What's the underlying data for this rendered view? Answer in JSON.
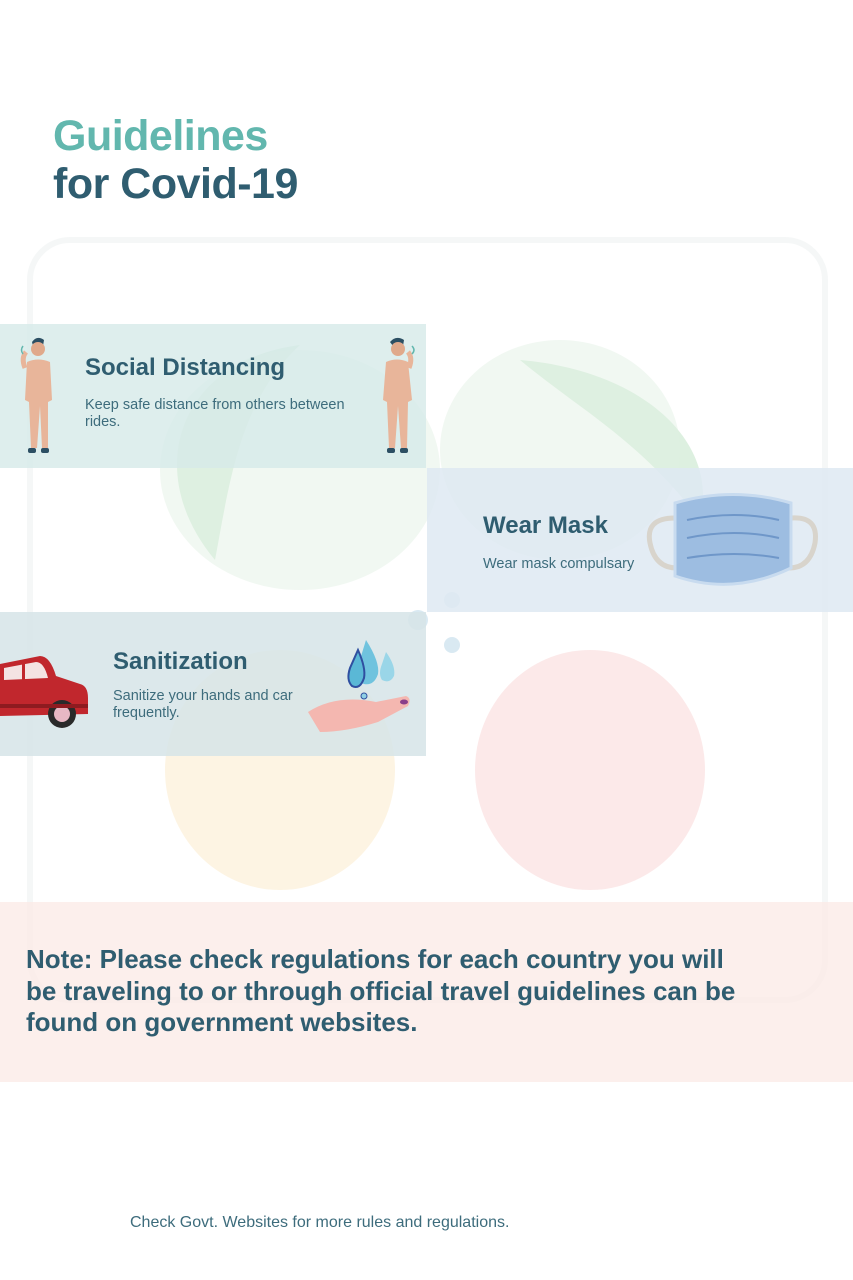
{
  "header": {
    "title_line1": "Guidelines",
    "title_line2": "for Covid-19"
  },
  "cards": {
    "social": {
      "title": "Social Distancing",
      "text": "Keep safe distance from others between rides."
    },
    "mask": {
      "title": "Wear Mask",
      "text": "Wear mask compulsary"
    },
    "sanitization": {
      "title": "Sanitization",
      "text": "Sanitize your hands and car frequently."
    }
  },
  "note": {
    "text": "Note: Please check regulations for each country you will be traveling to or through official travel guidelines can be found on government websites."
  },
  "footer": {
    "text": "Check Govt. Websites for more rules and regulations."
  },
  "colors": {
    "accent_teal": "#62b7ae",
    "dark_teal": "#2f5d70",
    "text_teal": "#3d6c7c",
    "car_red": "#c1272d"
  }
}
